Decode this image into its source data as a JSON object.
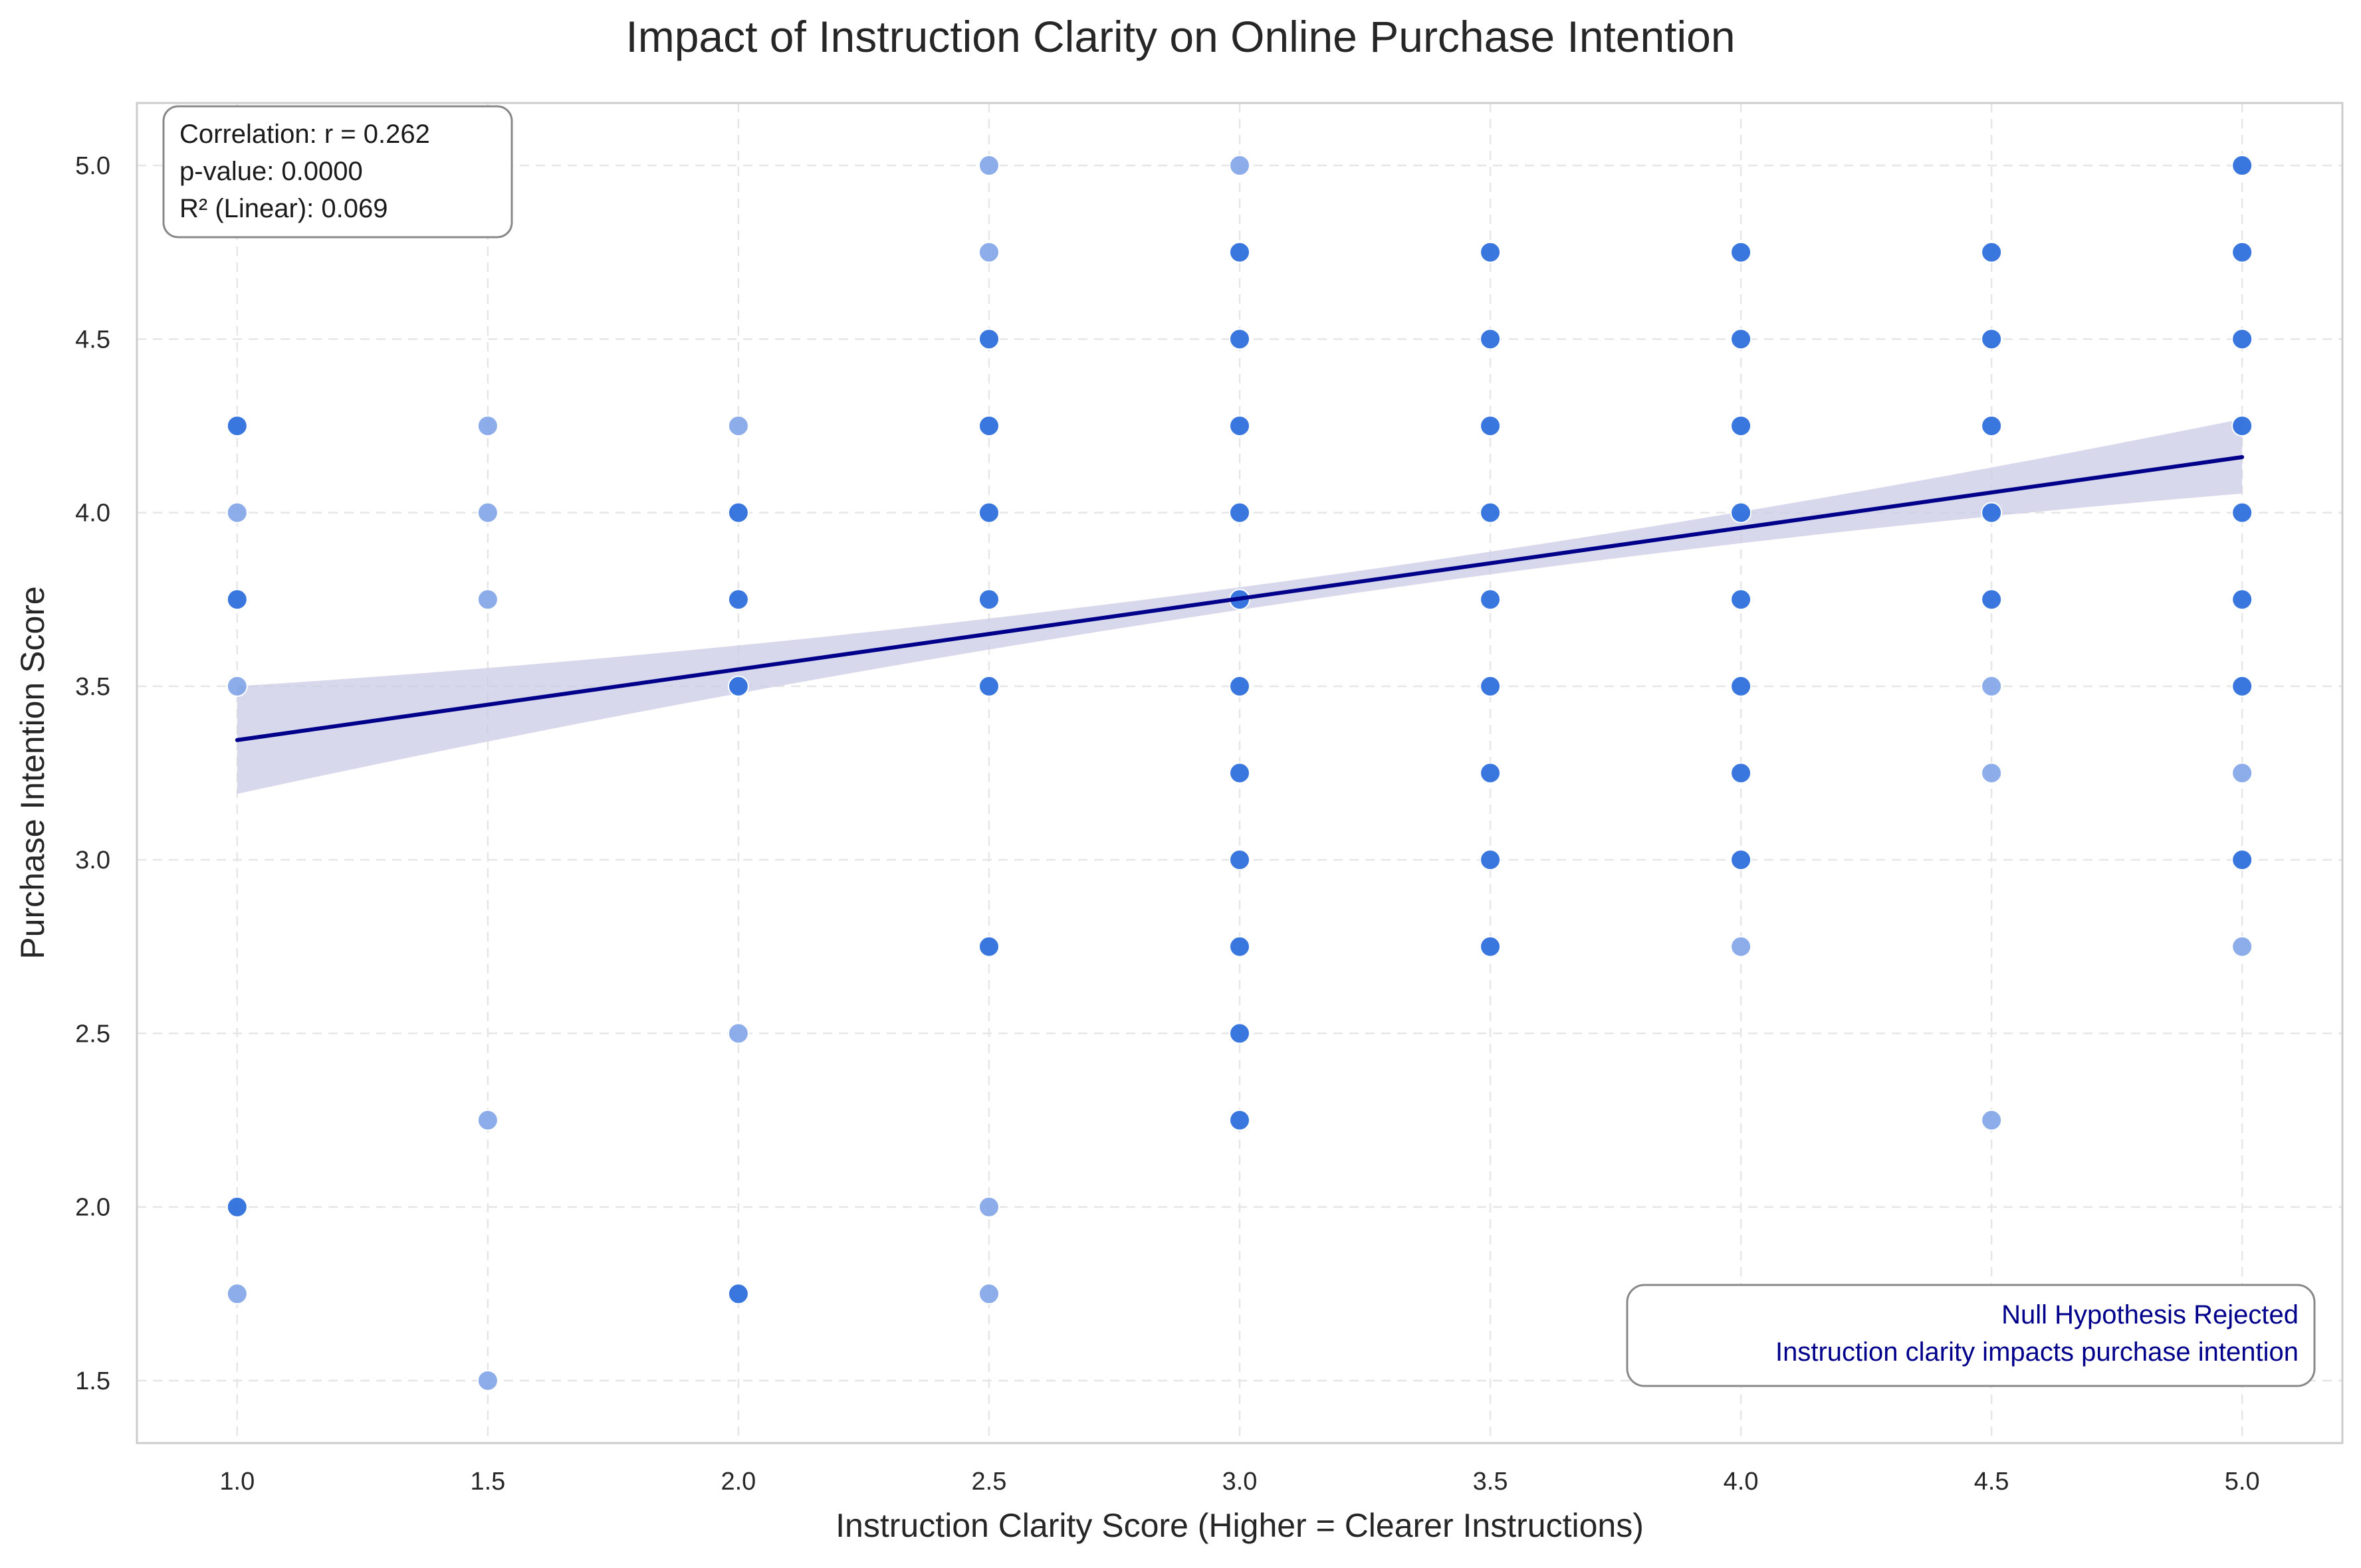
{
  "chart_data": {
    "type": "scatter",
    "title": "Impact of Instruction Clarity on Online Purchase Intention",
    "xlabel": "Instruction Clarity Score (Higher = Clearer Instructions)",
    "ylabel": "Purchase Intention Score",
    "xlim": [
      0.8,
      5.2
    ],
    "ylim": [
      1.32,
      5.18
    ],
    "xticks": [
      "1.0",
      "1.5",
      "2.0",
      "2.5",
      "3.0",
      "3.5",
      "4.0",
      "4.5",
      "5.0"
    ],
    "yticks": [
      "1.5",
      "2.0",
      "2.5",
      "3.0",
      "3.5",
      "4.0",
      "4.5",
      "5.0"
    ],
    "grid": true,
    "colors": {
      "point_dense": "#2e6fdc",
      "point_light": "#7fa4e8",
      "regression_line": "#00008b",
      "confidence_band": "#c9cbe4",
      "conclusion_text": "#00008b"
    },
    "series": [
      {
        "points": [
          {
            "x": 1.0,
            "y": 4.25,
            "dense": true
          },
          {
            "x": 1.0,
            "y": 4.0,
            "dense": false
          },
          {
            "x": 1.0,
            "y": 3.75,
            "dense": true
          },
          {
            "x": 1.0,
            "y": 3.5,
            "dense": false
          },
          {
            "x": 1.0,
            "y": 2.0,
            "dense": true
          },
          {
            "x": 1.0,
            "y": 1.75,
            "dense": false
          },
          {
            "x": 1.5,
            "y": 4.25,
            "dense": false
          },
          {
            "x": 1.5,
            "y": 4.0,
            "dense": false
          },
          {
            "x": 1.5,
            "y": 3.75,
            "dense": false
          },
          {
            "x": 1.5,
            "y": 2.25,
            "dense": false
          },
          {
            "x": 1.5,
            "y": 1.5,
            "dense": false
          },
          {
            "x": 2.0,
            "y": 4.25,
            "dense": false
          },
          {
            "x": 2.0,
            "y": 4.0,
            "dense": true
          },
          {
            "x": 2.0,
            "y": 3.75,
            "dense": true
          },
          {
            "x": 2.0,
            "y": 3.5,
            "dense": true
          },
          {
            "x": 2.0,
            "y": 2.5,
            "dense": false
          },
          {
            "x": 2.0,
            "y": 1.75,
            "dense": true
          },
          {
            "x": 2.5,
            "y": 5.0,
            "dense": false
          },
          {
            "x": 2.5,
            "y": 4.75,
            "dense": false
          },
          {
            "x": 2.5,
            "y": 4.5,
            "dense": true
          },
          {
            "x": 2.5,
            "y": 4.25,
            "dense": true
          },
          {
            "x": 2.5,
            "y": 4.0,
            "dense": true
          },
          {
            "x": 2.5,
            "y": 3.75,
            "dense": true
          },
          {
            "x": 2.5,
            "y": 3.5,
            "dense": true
          },
          {
            "x": 2.5,
            "y": 2.75,
            "dense": true
          },
          {
            "x": 2.5,
            "y": 2.0,
            "dense": false
          },
          {
            "x": 2.5,
            "y": 1.75,
            "dense": false
          },
          {
            "x": 3.0,
            "y": 5.0,
            "dense": false
          },
          {
            "x": 3.0,
            "y": 4.75,
            "dense": true
          },
          {
            "x": 3.0,
            "y": 4.5,
            "dense": true
          },
          {
            "x": 3.0,
            "y": 4.25,
            "dense": true
          },
          {
            "x": 3.0,
            "y": 4.0,
            "dense": true
          },
          {
            "x": 3.0,
            "y": 3.75,
            "dense": true
          },
          {
            "x": 3.0,
            "y": 3.5,
            "dense": true
          },
          {
            "x": 3.0,
            "y": 3.25,
            "dense": true
          },
          {
            "x": 3.0,
            "y": 3.0,
            "dense": true
          },
          {
            "x": 3.0,
            "y": 2.75,
            "dense": true
          },
          {
            "x": 3.0,
            "y": 2.5,
            "dense": true
          },
          {
            "x": 3.0,
            "y": 2.25,
            "dense": true
          },
          {
            "x": 3.5,
            "y": 4.75,
            "dense": true
          },
          {
            "x": 3.5,
            "y": 4.5,
            "dense": true
          },
          {
            "x": 3.5,
            "y": 4.25,
            "dense": true
          },
          {
            "x": 3.5,
            "y": 4.0,
            "dense": true
          },
          {
            "x": 3.5,
            "y": 3.75,
            "dense": true
          },
          {
            "x": 3.5,
            "y": 3.5,
            "dense": true
          },
          {
            "x": 3.5,
            "y": 3.25,
            "dense": true
          },
          {
            "x": 3.5,
            "y": 3.0,
            "dense": true
          },
          {
            "x": 3.5,
            "y": 2.75,
            "dense": true
          },
          {
            "x": 4.0,
            "y": 4.75,
            "dense": true
          },
          {
            "x": 4.0,
            "y": 4.5,
            "dense": true
          },
          {
            "x": 4.0,
            "y": 4.25,
            "dense": true
          },
          {
            "x": 4.0,
            "y": 4.0,
            "dense": true
          },
          {
            "x": 4.0,
            "y": 3.75,
            "dense": true
          },
          {
            "x": 4.0,
            "y": 3.5,
            "dense": true
          },
          {
            "x": 4.0,
            "y": 3.25,
            "dense": true
          },
          {
            "x": 4.0,
            "y": 3.0,
            "dense": true
          },
          {
            "x": 4.0,
            "y": 2.75,
            "dense": false
          },
          {
            "x": 4.5,
            "y": 4.75,
            "dense": true
          },
          {
            "x": 4.5,
            "y": 4.5,
            "dense": true
          },
          {
            "x": 4.5,
            "y": 4.25,
            "dense": true
          },
          {
            "x": 4.5,
            "y": 4.0,
            "dense": true
          },
          {
            "x": 4.5,
            "y": 3.75,
            "dense": true
          },
          {
            "x": 4.5,
            "y": 3.5,
            "dense": false
          },
          {
            "x": 4.5,
            "y": 3.25,
            "dense": false
          },
          {
            "x": 4.5,
            "y": 2.25,
            "dense": false
          },
          {
            "x": 5.0,
            "y": 5.0,
            "dense": true
          },
          {
            "x": 5.0,
            "y": 4.75,
            "dense": true
          },
          {
            "x": 5.0,
            "y": 4.5,
            "dense": true
          },
          {
            "x": 5.0,
            "y": 4.25,
            "dense": true
          },
          {
            "x": 5.0,
            "y": 4.0,
            "dense": true
          },
          {
            "x": 5.0,
            "y": 3.75,
            "dense": true
          },
          {
            "x": 5.0,
            "y": 3.5,
            "dense": true
          },
          {
            "x": 5.0,
            "y": 3.25,
            "dense": false
          },
          {
            "x": 5.0,
            "y": 3.0,
            "dense": true
          },
          {
            "x": 5.0,
            "y": 2.75,
            "dense": false
          }
        ]
      }
    ],
    "regression": {
      "x": [
        1.0,
        5.0
      ],
      "y": [
        3.345,
        4.16
      ],
      "ci_lower": [
        3.19,
        4.055
      ],
      "ci_upper": [
        3.5,
        4.27
      ],
      "ci_mid_x": 3.0,
      "ci_mid_lower": 3.72,
      "ci_mid_upper": 3.785
    },
    "annotations": {
      "stats_box": {
        "placement": "top-left",
        "lines": [
          "Correlation: r = 0.262",
          "p-value: 0.0000",
          "R² (Linear): 0.069"
        ]
      },
      "conclusion_box": {
        "placement": "bottom-right",
        "lines": [
          "Null Hypothesis Rejected",
          "Instruction clarity impacts purchase intention"
        ]
      }
    }
  }
}
